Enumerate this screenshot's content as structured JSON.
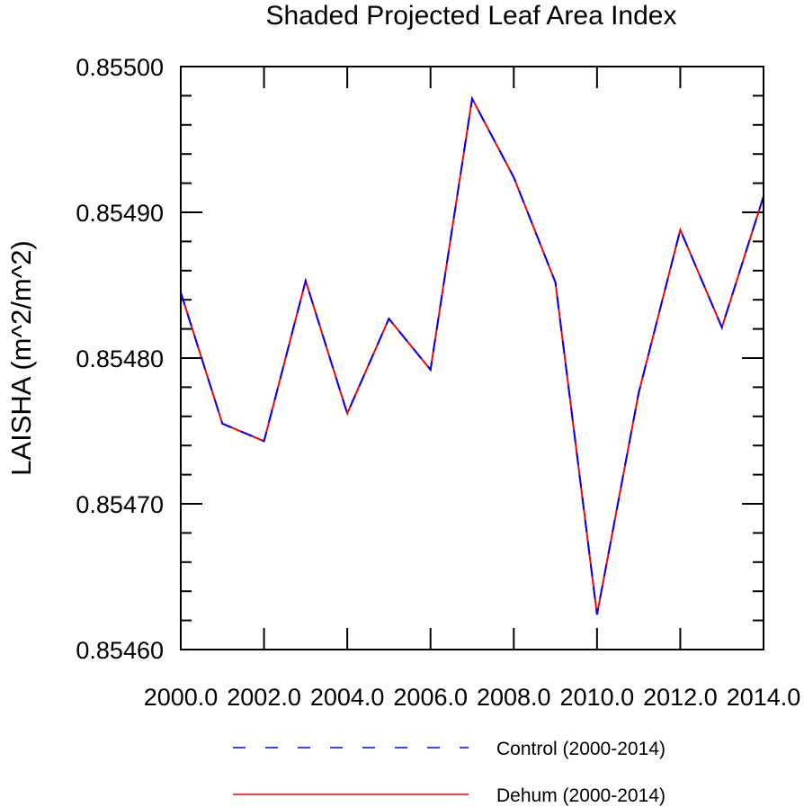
{
  "chart_data": {
    "type": "line",
    "title": "Shaded Projected Leaf Area Index",
    "xlabel": "",
    "ylabel": "LAISHA  (m^2/m^2)",
    "xlim": [
      2000,
      2014
    ],
    "ylim": [
      0.8546,
      0.855
    ],
    "x_tick_values": [
      2000,
      2002,
      2004,
      2006,
      2008,
      2010,
      2012,
      2014
    ],
    "x_tick_labels": [
      "2000.0",
      "2002.0",
      "2004.0",
      "2006.0",
      "2008.0",
      "2010.0",
      "2012.0",
      "2014.0"
    ],
    "y_tick_values": [
      0.8546,
      0.8547,
      0.8548,
      0.8549,
      0.855
    ],
    "y_tick_labels": [
      "0.85460",
      "0.85470",
      "0.85480",
      "0.85490",
      "0.85500"
    ],
    "grid": false,
    "legend_position": "bottom",
    "x": [
      2000,
      2001,
      2002,
      2003,
      2004,
      2005,
      2006,
      2007,
      2008,
      2009,
      2010,
      2011,
      2012,
      2013,
      2014
    ],
    "series": [
      {
        "name": "Control (2000-2014)",
        "color": "#0000ff",
        "style": "dashed",
        "values": [
          0.854845,
          0.854755,
          0.854743,
          0.854853,
          0.854762,
          0.854827,
          0.854792,
          0.854978,
          0.854924,
          0.854852,
          0.854624,
          0.854776,
          0.854888,
          0.854821,
          0.854911
        ]
      },
      {
        "name": "Dehum (2000-2014)",
        "color": "#ff0000",
        "style": "solid",
        "values": [
          0.854845,
          0.854755,
          0.854743,
          0.854853,
          0.854762,
          0.854827,
          0.854792,
          0.854978,
          0.854924,
          0.854852,
          0.854624,
          0.854776,
          0.854888,
          0.854821,
          0.854911
        ]
      }
    ]
  }
}
